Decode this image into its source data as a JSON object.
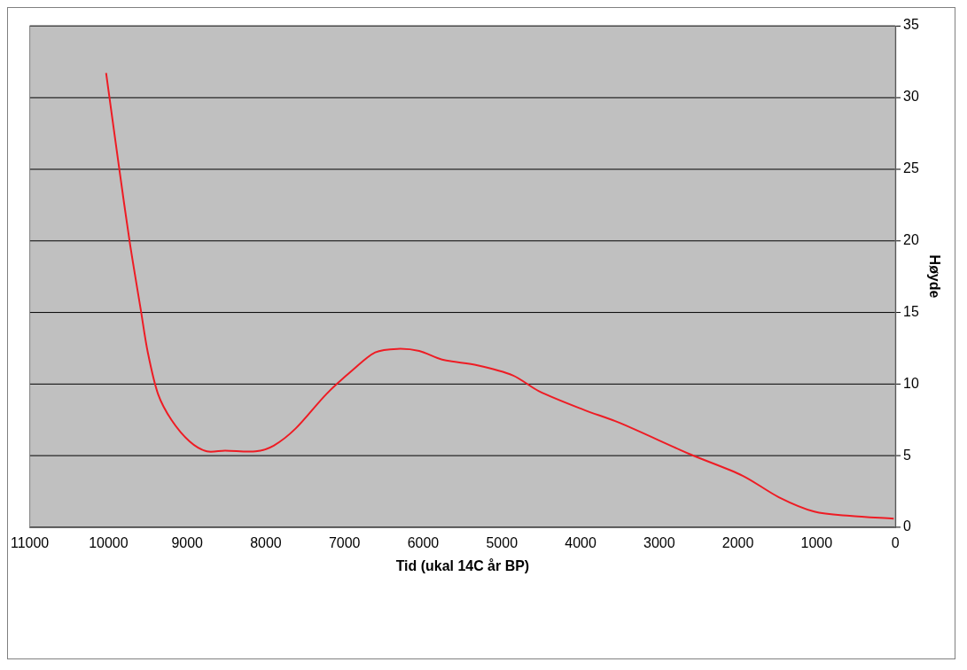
{
  "chart_data": {
    "type": "line",
    "xlabel": "Tid (ukal 14C år BP)",
    "ylabel": "Høyde",
    "x": [
      10030,
      9870,
      9730,
      9590,
      9500,
      9370,
      9200,
      8970,
      8750,
      8520,
      8130,
      7900,
      7620,
      7230,
      6890,
      6610,
      6330,
      6050,
      5760,
      5310,
      4860,
      4530,
      3960,
      3510,
      2610,
      1940,
      1480,
      1030,
      580,
      20
    ],
    "series": [
      {
        "color": "#ee1c24",
        "values": [
          31.7,
          25.3,
          19.9,
          15.2,
          12.2,
          9.3,
          7.5,
          6.0,
          5.3,
          5.35,
          5.3,
          5.7,
          6.9,
          9.3,
          11.0,
          12.2,
          12.45,
          12.3,
          11.7,
          11.3,
          10.6,
          9.5,
          8.2,
          7.3,
          5.1,
          3.6,
          2.1,
          1.1,
          0.8,
          0.6
        ]
      }
    ],
    "xlim": [
      11000,
      0
    ],
    "xticks": [
      11000,
      10000,
      9000,
      8000,
      7000,
      6000,
      5000,
      4000,
      3000,
      2000,
      1000,
      0
    ],
    "ylim": [
      0,
      35
    ],
    "yticks": [
      0,
      5,
      10,
      15,
      20,
      25,
      30,
      35
    ],
    "grid": "y",
    "legend": false
  }
}
